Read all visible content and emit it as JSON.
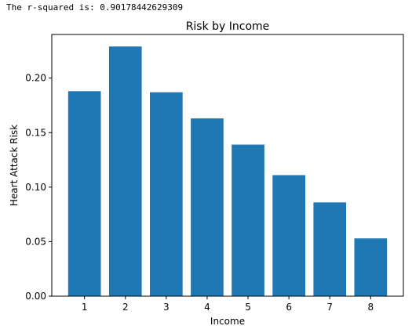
{
  "output": {
    "text": "The r-squared is: 0.90178442629309"
  },
  "chart_data": {
    "type": "bar",
    "title": "Risk by Income",
    "xlabel": "Income",
    "ylabel": "Heart Attack Risk",
    "categories": [
      "1",
      "2",
      "3",
      "4",
      "5",
      "6",
      "7",
      "8"
    ],
    "values": [
      0.188,
      0.229,
      0.187,
      0.163,
      0.139,
      0.111,
      0.086,
      0.053
    ],
    "ylim": [
      0,
      0.24
    ],
    "yticks": [
      "0.00",
      "0.05",
      "0.10",
      "0.15",
      "0.20"
    ],
    "bar_color": "#1f77b4",
    "grid": false
  }
}
